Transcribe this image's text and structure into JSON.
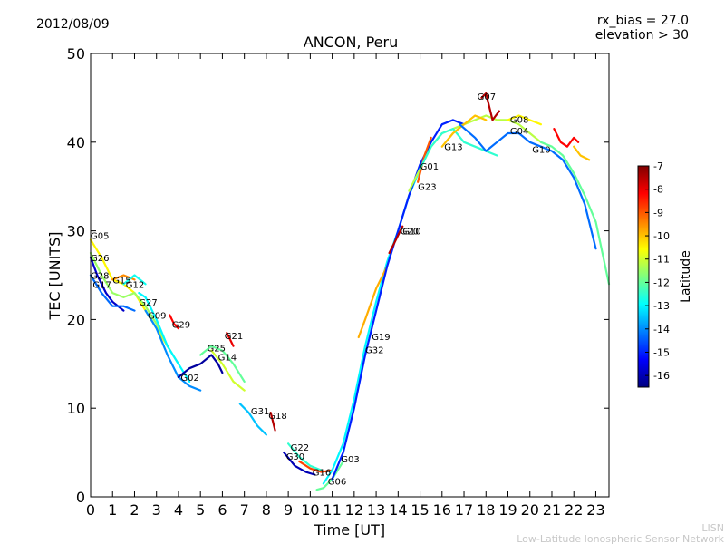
{
  "date_label": "2012/08/09",
  "rx_bias_label": "rx_bias = 27.0",
  "elevation_label": "elevation > 30",
  "credit": {
    "line1": "LISN",
    "line2": "Low-Latitude Ionospheric Sensor Network"
  },
  "colorbar": {
    "label": "Latitude",
    "ticks": [
      "-7",
      "-8",
      "-9",
      "-10",
      "-11",
      "-12",
      "-13",
      "-14",
      "-15",
      "-16"
    ],
    "range": [
      -16.5,
      -7
    ],
    "colormap": [
      "#00007f",
      "#0000ff",
      "#007fff",
      "#00ffff",
      "#7fff7f",
      "#ffff00",
      "#ff7f00",
      "#ff0000",
      "#7f0000"
    ]
  },
  "chart_data": {
    "type": "line",
    "title": "ANCON, Peru",
    "xlabel": "Time [UT]",
    "ylabel": "TEC [UNITS]",
    "xlim": [
      0,
      23.6
    ],
    "ylim": [
      0,
      50
    ],
    "xticks": [
      "0",
      "1",
      "2",
      "3",
      "4",
      "5",
      "6",
      "7",
      "8",
      "9",
      "10",
      "11",
      "12",
      "13",
      "14",
      "15",
      "16",
      "17",
      "18",
      "19",
      "20",
      "21",
      "22",
      "23"
    ],
    "yticks": [
      "0",
      "10",
      "20",
      "30",
      "40",
      "50"
    ],
    "grid": false,
    "series": [
      {
        "name": "G05",
        "lat": -10.5,
        "label_at": [
          0.0,
          29.5
        ],
        "x": [
          0.0,
          0.5,
          1.0,
          1.5,
          2.0,
          2.5,
          3.0,
          3.5
        ],
        "y": [
          29.0,
          27.0,
          24.5,
          24.0,
          23.0,
          21.0,
          19.0,
          17.0
        ]
      },
      {
        "name": "G26",
        "lat": -11.5,
        "label_at": [
          0.0,
          27.0
        ],
        "x": [
          0.0,
          0.5,
          1.0,
          1.5,
          2.0,
          2.5,
          3.0,
          3.5,
          4.0
        ],
        "y": [
          27.5,
          25.0,
          23.0,
          22.5,
          23.0,
          21.5,
          19.5,
          17.0,
          15.0
        ]
      },
      {
        "name": "G28",
        "lat": -15.8,
        "label_at": [
          0.0,
          25.0
        ],
        "x": [
          0.0,
          0.3,
          0.7,
          1.0,
          1.5
        ],
        "y": [
          27.0,
          25.0,
          23.0,
          22.0,
          21.0
        ]
      },
      {
        "name": "G17",
        "lat": -14.3,
        "label_at": [
          0.1,
          24.0
        ],
        "x": [
          0.0,
          0.5,
          1.0,
          1.5,
          2.0
        ],
        "y": [
          25.0,
          23.0,
          21.5,
          21.5,
          21.0
        ]
      },
      {
        "name": "G15",
        "lat": -9.5,
        "label_at": [
          1.0,
          24.5
        ],
        "x": [
          1.0,
          1.5,
          2.0
        ],
        "y": [
          24.5,
          25.0,
          24.5
        ]
      },
      {
        "name": "G12",
        "lat": -12.8,
        "label_at": [
          1.6,
          24.0
        ],
        "x": [
          1.5,
          2.0,
          2.5
        ],
        "y": [
          24.0,
          25.0,
          24.0
        ]
      },
      {
        "name": "G27",
        "lat": -13.0,
        "label_at": [
          2.2,
          22.0
        ],
        "x": [
          2.2,
          2.5,
          3.0,
          3.5,
          4.0,
          4.5
        ],
        "y": [
          23.0,
          22.5,
          20.0,
          17.0,
          15.0,
          13.0
        ]
      },
      {
        "name": "G09",
        "lat": -14.0,
        "label_at": [
          2.6,
          20.5
        ],
        "x": [
          2.5,
          3.0,
          3.5,
          4.0,
          4.5,
          5.0
        ],
        "y": [
          21.0,
          19.0,
          16.0,
          13.5,
          12.5,
          12.0
        ]
      },
      {
        "name": "G29",
        "lat": -8.2,
        "label_at": [
          3.7,
          19.5
        ],
        "x": [
          3.6,
          3.8,
          4.0
        ],
        "y": [
          20.5,
          19.5,
          19.0
        ]
      },
      {
        "name": "G02",
        "lat": -16.2,
        "label_at": [
          4.1,
          13.5
        ],
        "x": [
          4.0,
          4.5,
          5.0,
          5.5,
          5.8,
          6.0
        ],
        "y": [
          13.5,
          14.5,
          15.0,
          16.0,
          15.0,
          14.0
        ]
      },
      {
        "name": "G25",
        "lat": -12.0,
        "label_at": [
          5.3,
          16.8
        ],
        "x": [
          5.0,
          5.5,
          6.0,
          6.5,
          7.0
        ],
        "y": [
          16.0,
          17.0,
          16.5,
          15.0,
          13.0
        ]
      },
      {
        "name": "G14",
        "lat": -11.0,
        "label_at": [
          5.8,
          15.8
        ],
        "x": [
          5.5,
          6.0,
          6.5,
          7.0
        ],
        "y": [
          16.5,
          15.0,
          13.0,
          12.0
        ]
      },
      {
        "name": "G21",
        "lat": -8.0,
        "label_at": [
          6.1,
          18.2
        ],
        "x": [
          6.2,
          6.5
        ],
        "y": [
          18.5,
          17.0
        ]
      },
      {
        "name": "G31",
        "lat": -13.5,
        "label_at": [
          7.3,
          9.7
        ],
        "x": [
          6.8,
          7.2,
          7.6,
          8.0
        ],
        "y": [
          10.5,
          9.5,
          8.0,
          7.0
        ]
      },
      {
        "name": "G18",
        "lat": -7.5,
        "label_at": [
          8.1,
          9.2
        ],
        "x": [
          8.2,
          8.4
        ],
        "y": [
          9.5,
          7.5
        ]
      },
      {
        "name": "G22",
        "lat": -12.5,
        "label_at": [
          9.1,
          5.6
        ],
        "x": [
          9.0,
          9.5,
          10.0,
          10.5
        ],
        "y": [
          6.0,
          4.5,
          3.5,
          3.0
        ]
      },
      {
        "name": "G30",
        "lat": -16.0,
        "label_at": [
          8.9,
          4.6
        ],
        "x": [
          8.8,
          9.3,
          9.8,
          10.2
        ],
        "y": [
          5.0,
          3.5,
          2.8,
          2.5
        ]
      },
      {
        "name": "G16",
        "lat": -8.8,
        "label_at": [
          10.1,
          2.8
        ],
        "x": [
          9.5,
          10.0,
          10.5,
          11.0
        ],
        "y": [
          4.0,
          3.2,
          2.8,
          3.0
        ]
      },
      {
        "name": "G06",
        "lat": -12.0,
        "label_at": [
          10.8,
          1.8
        ],
        "x": [
          10.3,
          10.6,
          11.0,
          11.5
        ],
        "y": [
          0.8,
          1.0,
          2.0,
          4.0
        ]
      },
      {
        "name": "G03",
        "lat": -13.0,
        "label_at": [
          11.4,
          4.3
        ],
        "x": [
          10.6,
          11.0,
          11.5,
          12.0,
          12.5,
          13.0,
          13.5,
          14.0,
          14.5,
          15.0
        ],
        "y": [
          1.5,
          3.0,
          6.0,
          11.0,
          17.0,
          22.0,
          26.5,
          30.0,
          34.0,
          37.0
        ]
      },
      {
        "name": "G19",
        "lat": -9.8,
        "label_at": [
          12.8,
          18.1
        ],
        "x": [
          12.2,
          12.5,
          13.0,
          13.5
        ],
        "y": [
          18.0,
          20.0,
          23.5,
          26.0
        ]
      },
      {
        "name": "G32",
        "lat": -15.0,
        "label_at": [
          12.5,
          16.6
        ],
        "x": [
          11.0,
          11.5,
          12.0,
          12.5,
          13.0,
          13.5,
          14.0,
          14.5,
          15.0,
          15.5,
          16.0,
          16.5,
          17.0
        ],
        "y": [
          2.0,
          5.0,
          10.0,
          16.0,
          21.0,
          26.0,
          30.0,
          34.0,
          37.5,
          40.0,
          42.0,
          42.5,
          42.0
        ]
      },
      {
        "name": "G20",
        "lat": -7.5,
        "label_at": [
          14.1,
          30.0
        ],
        "x": [
          13.6,
          13.8,
          14.0,
          14.2
        ],
        "y": [
          27.5,
          28.5,
          29.5,
          30.5
        ]
      },
      {
        "name": "G10",
        "lat": -11.2,
        "label_at": [
          14.2,
          30.0
        ],
        "x": [
          14.5,
          15.0,
          15.5,
          16.0,
          16.5,
          17.0,
          17.5,
          18.0,
          18.5,
          19.0,
          19.5,
          20.0,
          20.5
        ],
        "y": [
          34.5,
          37.0,
          39.5,
          41.0,
          41.5,
          42.0,
          42.5,
          43.0,
          42.5,
          42.5,
          42.0,
          41.0,
          40.0
        ]
      },
      {
        "name": "G23",
        "lat": -9.0,
        "label_at": [
          14.9,
          35.0
        ],
        "x": [
          14.9,
          15.2,
          15.5
        ],
        "y": [
          35.5,
          38.5,
          40.5
        ]
      },
      {
        "name": "G01",
        "lat": -12.5,
        "label_at": [
          15.0,
          37.3
        ],
        "x": [
          15.0,
          15.5,
          16.0,
          16.5,
          17.0,
          17.5,
          18.0,
          18.5
        ],
        "y": [
          37.0,
          39.5,
          41.0,
          41.5,
          40.0,
          39.5,
          39.0,
          38.5
        ]
      },
      {
        "name": "G13",
        "lat": -10.0,
        "label_at": [
          16.1,
          39.5
        ],
        "x": [
          16.0,
          16.5,
          17.0,
          17.5,
          18.0
        ],
        "y": [
          39.5,
          41.0,
          42.0,
          43.0,
          42.5
        ]
      },
      {
        "name": "G07",
        "lat": -7.5,
        "label_at": [
          17.6,
          45.2
        ],
        "x": [
          17.8,
          18.0,
          18.3,
          18.6
        ],
        "y": [
          45.0,
          45.5,
          42.5,
          43.5
        ]
      },
      {
        "name": "G08",
        "lat": -10.5,
        "label_at": [
          19.1,
          42.6
        ],
        "x": [
          19.0,
          19.5,
          20.0,
          20.5
        ],
        "y": [
          42.5,
          43.0,
          42.5,
          42.0
        ]
      },
      {
        "name": "G04",
        "lat": -14.3,
        "label_at": [
          19.1,
          41.3
        ],
        "x": [
          16.8,
          17.5,
          18.0,
          18.5,
          19.0,
          19.5,
          20.0,
          20.5,
          21.0,
          21.5,
          22.0,
          22.5,
          23.0
        ],
        "y": [
          42.0,
          40.5,
          39.0,
          40.0,
          41.0,
          41.0,
          40.0,
          39.5,
          39.0,
          38.0,
          36.0,
          33.0,
          28.0
        ]
      },
      {
        "name": "",
        "lat": -8.2,
        "label_at": null,
        "x": [
          21.1,
          21.4,
          21.7,
          22.0,
          22.2
        ],
        "y": [
          41.5,
          40.0,
          39.5,
          40.5,
          40.0
        ]
      },
      {
        "name": "",
        "lat": -12.0,
        "label_at": null,
        "x": [
          20.5,
          21.0,
          21.5,
          22.0,
          22.5,
          23.0,
          23.6
        ],
        "y": [
          40.0,
          39.5,
          38.5,
          36.5,
          34.0,
          31.0,
          24.0
        ]
      },
      {
        "name": "",
        "lat": -10.0,
        "label_at": null,
        "x": [
          22.0,
          22.3,
          22.7
        ],
        "y": [
          39.5,
          38.5,
          38.0
        ]
      }
    ],
    "extra_label": {
      "text": "G10",
      "at": [
        20.1,
        39.2
      ]
    }
  }
}
